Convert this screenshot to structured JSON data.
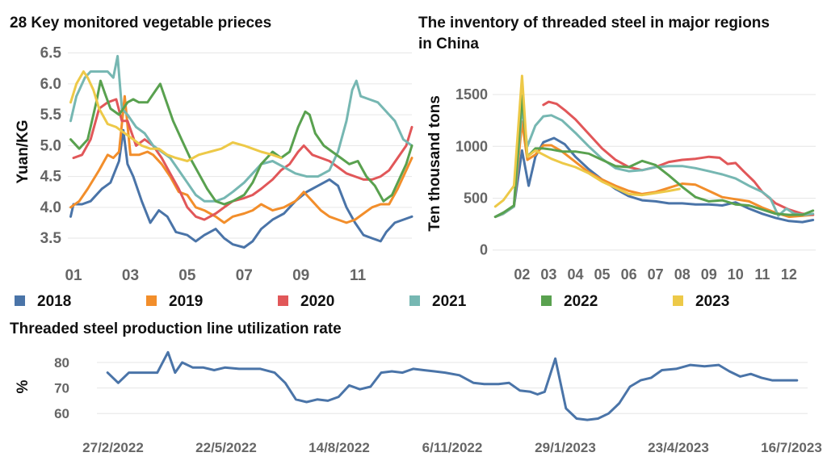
{
  "colors": {
    "2018": "#4a74a8",
    "2019": "#f28e2b",
    "2020": "#e15759",
    "2021": "#76b7b2",
    "2022": "#59a14f",
    "2023": "#edc948",
    "grid": "#e6e6e6",
    "tick": "#666666",
    "title": "#111111"
  },
  "legend": [
    "2018",
    "2019",
    "2020",
    "2021",
    "2022",
    "2023"
  ],
  "chart_data": [
    {
      "type": "line",
      "title": "28 Key monitored vegetable prieces",
      "ylabel": "Yuan/KG",
      "xlabel": "",
      "ylim": [
        3.2,
        6.6
      ],
      "xlim": [
        0.8,
        12.9
      ],
      "yticks": [
        "3.5",
        "4.0",
        "4.5",
        "5.0",
        "5.5",
        "6.0",
        "6.5"
      ],
      "ytick_values": [
        3.5,
        4.0,
        4.5,
        5.0,
        5.5,
        6.0,
        6.5
      ],
      "xticks": [
        "01",
        "03",
        "05",
        "07",
        "09",
        "11"
      ],
      "xtick_values": [
        1,
        3,
        5,
        7,
        9,
        11
      ],
      "series": [
        {
          "name": "2018",
          "x": [
            0.9,
            1.0,
            1.3,
            1.6,
            2.0,
            2.3,
            2.6,
            2.75,
            2.9,
            3.1,
            3.4,
            3.7,
            4.0,
            4.3,
            4.6,
            5.0,
            5.3,
            5.6,
            6.0,
            6.3,
            6.6,
            7.0,
            7.3,
            7.6,
            8.0,
            8.4,
            8.8,
            9.2,
            9.6,
            10.0,
            10.3,
            10.6,
            10.9,
            11.2,
            11.5,
            11.8,
            12.0,
            12.3,
            12.6,
            12.9
          ],
          "y": [
            3.85,
            4.05,
            4.05,
            4.1,
            4.3,
            4.4,
            4.75,
            5.25,
            4.7,
            4.5,
            4.1,
            3.75,
            3.95,
            3.85,
            3.6,
            3.55,
            3.45,
            3.55,
            3.65,
            3.5,
            3.4,
            3.35,
            3.45,
            3.65,
            3.8,
            3.9,
            4.1,
            4.25,
            4.35,
            4.45,
            4.35,
            4.0,
            3.75,
            3.55,
            3.5,
            3.45,
            3.6,
            3.75,
            3.8,
            3.85
          ]
        },
        {
          "name": "2019",
          "x": [
            0.9,
            1.2,
            1.5,
            1.9,
            2.2,
            2.4,
            2.6,
            2.8,
            3.0,
            3.3,
            3.6,
            3.8,
            4.1,
            4.4,
            4.7,
            5.0,
            5.3,
            5.6,
            6.0,
            6.3,
            6.6,
            7.0,
            7.3,
            7.6,
            8.0,
            8.4,
            8.8,
            9.1,
            9.4,
            9.7,
            10.0,
            10.3,
            10.6,
            10.9,
            11.2,
            11.5,
            11.8,
            12.1,
            12.4,
            12.7,
            12.9
          ],
          "y": [
            4.0,
            4.1,
            4.3,
            4.6,
            4.85,
            4.8,
            4.9,
            5.8,
            4.85,
            4.85,
            4.9,
            4.85,
            4.7,
            4.5,
            4.25,
            4.2,
            4.0,
            3.95,
            3.85,
            3.75,
            3.85,
            3.9,
            3.95,
            4.05,
            3.95,
            4.0,
            4.1,
            4.25,
            4.1,
            3.95,
            3.85,
            3.8,
            3.75,
            3.8,
            3.9,
            4.0,
            4.05,
            4.05,
            4.3,
            4.6,
            4.8
          ]
        },
        {
          "name": "2020",
          "x": [
            1.0,
            1.3,
            1.6,
            1.9,
            2.2,
            2.5,
            2.7,
            2.9,
            3.2,
            3.5,
            3.8,
            4.1,
            4.4,
            4.7,
            5.0,
            5.3,
            5.6,
            6.0,
            6.3,
            6.6,
            7.0,
            7.3,
            7.6,
            8.0,
            8.3,
            8.6,
            8.9,
            9.1,
            9.4,
            9.7,
            10.0,
            10.3,
            10.6,
            10.9,
            11.2,
            11.5,
            11.8,
            12.1,
            12.4,
            12.7,
            12.9
          ],
          "y": [
            4.8,
            4.85,
            5.1,
            5.6,
            5.7,
            5.75,
            5.4,
            5.4,
            5.0,
            5.1,
            5.0,
            4.8,
            4.55,
            4.3,
            4.0,
            3.85,
            3.8,
            3.9,
            4.0,
            4.1,
            4.15,
            4.2,
            4.3,
            4.45,
            4.6,
            4.7,
            4.9,
            5.0,
            4.85,
            4.8,
            4.75,
            4.65,
            4.55,
            4.5,
            4.45,
            4.45,
            4.5,
            4.6,
            4.8,
            5.0,
            5.3
          ]
        },
        {
          "name": "2021",
          "x": [
            0.9,
            1.1,
            1.4,
            1.6,
            1.9,
            2.2,
            2.4,
            2.55,
            2.7,
            2.9,
            3.2,
            3.5,
            3.8,
            4.1,
            4.4,
            4.7,
            5.0,
            5.3,
            5.6,
            6.0,
            6.3,
            6.6,
            7.0,
            7.3,
            7.6,
            8.0,
            8.4,
            8.8,
            9.2,
            9.6,
            10.0,
            10.3,
            10.6,
            10.8,
            10.95,
            11.1,
            11.4,
            11.7,
            12.0,
            12.3,
            12.6,
            12.9
          ],
          "y": [
            5.4,
            5.8,
            6.1,
            6.2,
            6.2,
            6.2,
            6.1,
            6.45,
            5.6,
            5.5,
            5.3,
            5.2,
            5.0,
            4.9,
            4.8,
            4.6,
            4.4,
            4.2,
            4.1,
            4.1,
            4.15,
            4.25,
            4.4,
            4.55,
            4.7,
            4.75,
            4.65,
            4.55,
            4.5,
            4.5,
            4.6,
            4.9,
            5.4,
            5.9,
            6.05,
            5.8,
            5.75,
            5.7,
            5.55,
            5.4,
            5.1,
            5.0
          ]
        },
        {
          "name": "2022",
          "x": [
            0.9,
            1.2,
            1.5,
            1.8,
            1.95,
            2.1,
            2.3,
            2.6,
            2.9,
            3.1,
            3.3,
            3.6,
            3.9,
            4.05,
            4.2,
            4.5,
            4.8,
            5.1,
            5.4,
            5.7,
            6.0,
            6.3,
            6.6,
            7.0,
            7.3,
            7.6,
            8.0,
            8.3,
            8.6,
            8.9,
            9.15,
            9.3,
            9.5,
            9.8,
            10.1,
            10.4,
            10.7,
            11.0,
            11.3,
            11.6,
            11.9,
            12.2,
            12.5,
            12.7,
            12.9
          ],
          "y": [
            5.1,
            4.95,
            5.1,
            5.7,
            6.05,
            5.85,
            5.6,
            5.5,
            5.7,
            5.75,
            5.7,
            5.7,
            5.9,
            6.0,
            5.8,
            5.4,
            5.1,
            4.8,
            4.55,
            4.3,
            4.1,
            4.05,
            4.1,
            4.2,
            4.4,
            4.7,
            4.9,
            4.8,
            4.9,
            5.3,
            5.55,
            5.5,
            5.2,
            5.0,
            4.9,
            4.8,
            4.7,
            4.75,
            4.5,
            4.35,
            4.1,
            4.2,
            4.5,
            4.7,
            5.0
          ]
        },
        {
          "name": "2023",
          "x": [
            0.9,
            1.1,
            1.35,
            1.5,
            1.7,
            1.9,
            2.2,
            2.5,
            2.8,
            3.1,
            3.4,
            3.7,
            4.0,
            4.3,
            4.6,
            5.0,
            5.4,
            5.8,
            6.2,
            6.6,
            7.0,
            7.3,
            7.6,
            8.0,
            8.3
          ],
          "y": [
            5.7,
            6.0,
            6.2,
            6.1,
            5.9,
            5.6,
            5.35,
            5.3,
            5.2,
            5.1,
            5.0,
            4.95,
            4.95,
            4.85,
            4.8,
            4.75,
            4.85,
            4.9,
            4.95,
            5.05,
            5.0,
            4.95,
            4.9,
            4.85,
            4.8
          ]
        }
      ]
    },
    {
      "type": "line",
      "title": "The inventory of threaded steel in major regions in China",
      "ylabel": "Ten thousand tons",
      "xlabel": "",
      "ylim": [
        -80,
        1750
      ],
      "xlim": [
        0.9,
        13.0
      ],
      "yticks": [
        "0",
        "500",
        "1000",
        "1500"
      ],
      "ytick_values": [
        0,
        500,
        1000,
        1500
      ],
      "xticks": [
        "02",
        "03",
        "04",
        "05",
        "06",
        "07",
        "08",
        "09",
        "10",
        "11",
        "12"
      ],
      "xtick_values": [
        2,
        3,
        4,
        5,
        6,
        7,
        8,
        9,
        10,
        11,
        12
      ],
      "series": [
        {
          "name": "2018",
          "x": [
            1.0,
            1.3,
            1.7,
            2.0,
            2.25,
            2.5,
            2.8,
            3.2,
            3.6,
            4.0,
            4.5,
            5.0,
            5.5,
            6.0,
            6.5,
            7.0,
            7.5,
            8.0,
            8.5,
            9.0,
            9.5,
            10.0,
            10.5,
            11.0,
            11.5,
            12.0,
            12.5,
            12.9
          ],
          "y": [
            320,
            360,
            420,
            960,
            620,
            900,
            1040,
            1080,
            1020,
            900,
            780,
            680,
            590,
            520,
            480,
            470,
            450,
            450,
            440,
            440,
            430,
            460,
            400,
            350,
            310,
            280,
            270,
            290
          ]
        },
        {
          "name": "2019",
          "x": [
            1.0,
            1.3,
            1.7,
            2.0,
            2.2,
            2.5,
            2.8,
            3.1,
            3.5,
            4.0,
            4.5,
            5.0,
            5.5,
            6.0,
            6.5,
            7.0,
            7.5,
            8.0,
            8.5,
            9.0,
            9.5,
            10.0,
            10.5,
            11.0,
            11.5,
            12.0,
            12.5,
            12.9
          ],
          "y": [
            320,
            350,
            420,
            1240,
            870,
            920,
            1010,
            1010,
            950,
            850,
            750,
            680,
            620,
            570,
            540,
            560,
            600,
            640,
            630,
            570,
            510,
            490,
            470,
            410,
            360,
            320,
            330,
            340
          ]
        },
        {
          "name": "2020",
          "x": [
            2.8,
            3.0,
            3.3,
            3.6,
            4.0,
            4.5,
            5.0,
            5.5,
            6.0,
            6.5,
            7.0,
            7.5,
            8.0,
            8.5,
            9.0,
            9.4,
            9.7,
            10.0,
            10.3,
            10.7,
            11.0,
            11.5,
            12.0,
            12.5,
            12.9
          ],
          "y": [
            1400,
            1430,
            1410,
            1350,
            1260,
            1120,
            980,
            870,
            800,
            770,
            800,
            850,
            870,
            880,
            900,
            890,
            830,
            840,
            760,
            660,
            560,
            450,
            390,
            350,
            340
          ]
        },
        {
          "name": "2021",
          "x": [
            1.0,
            1.3,
            1.7,
            2.0,
            2.2,
            2.5,
            2.8,
            3.1,
            3.5,
            4.0,
            4.5,
            5.0,
            5.5,
            6.0,
            6.5,
            7.0,
            7.5,
            8.0,
            8.5,
            9.0,
            9.5,
            10.0,
            10.5,
            11.0,
            11.3,
            11.6,
            11.9,
            12.2,
            12.6,
            12.9
          ],
          "y": [
            320,
            350,
            420,
            1380,
            1000,
            1200,
            1290,
            1300,
            1250,
            1130,
            1000,
            880,
            790,
            760,
            770,
            800,
            810,
            810,
            790,
            760,
            730,
            690,
            620,
            560,
            500,
            330,
            400,
            350,
            340,
            350
          ]
        },
        {
          "name": "2022",
          "x": [
            1.0,
            1.3,
            1.7,
            2.0,
            2.2,
            2.5,
            2.8,
            3.1,
            3.5,
            4.0,
            4.5,
            5.0,
            5.5,
            6.0,
            6.5,
            7.0,
            7.5,
            8.0,
            8.5,
            9.0,
            9.5,
            10.0,
            10.5,
            11.0,
            11.5,
            12.0,
            12.5,
            12.9
          ],
          "y": [
            320,
            360,
            430,
            1490,
            900,
            980,
            980,
            970,
            950,
            950,
            930,
            870,
            810,
            800,
            860,
            820,
            720,
            610,
            510,
            470,
            480,
            440,
            430,
            390,
            350,
            340,
            340,
            380
          ]
        },
        {
          "name": "2023",
          "x": [
            1.0,
            1.3,
            1.7,
            2.0,
            2.2,
            2.5,
            2.8,
            3.1,
            3.5,
            4.0,
            4.5,
            5.0,
            5.5,
            6.0,
            6.5,
            7.0,
            7.5,
            7.9
          ],
          "y": [
            420,
            480,
            620,
            1680,
            900,
            960,
            920,
            880,
            840,
            800,
            740,
            660,
            600,
            540,
            530,
            550,
            570,
            590
          ]
        }
      ]
    },
    {
      "type": "line",
      "title": "Threaded steel production line utilization rate",
      "ylabel": "%",
      "xlabel": "",
      "ylim": [
        55,
        86
      ],
      "xlim": [
        0,
        1
      ],
      "yticks": [
        "60",
        "70",
        "80"
      ],
      "ytick_values": [
        60,
        70,
        80
      ],
      "xticks": [
        "27/2/2022",
        "22/5/2022",
        "14/8/2022",
        "6/11/2022",
        "29/1/2023",
        "23/4/2023",
        "16/7/2023"
      ],
      "series": [
        {
          "name": "",
          "x": [
            0.015,
            0.03,
            0.045,
            0.065,
            0.085,
            0.1,
            0.11,
            0.12,
            0.135,
            0.15,
            0.165,
            0.18,
            0.2,
            0.215,
            0.23,
            0.25,
            0.265,
            0.28,
            0.295,
            0.31,
            0.325,
            0.34,
            0.355,
            0.37,
            0.385,
            0.4,
            0.415,
            0.43,
            0.445,
            0.46,
            0.475,
            0.49,
            0.51,
            0.53,
            0.545,
            0.565,
            0.58,
            0.595,
            0.61,
            0.62,
            0.63,
            0.645,
            0.66,
            0.675,
            0.69,
            0.705,
            0.72,
            0.735,
            0.75,
            0.765,
            0.78,
            0.795,
            0.815,
            0.835,
            0.855,
            0.875,
            0.89,
            0.905,
            0.92,
            0.935,
            0.95,
            0.965,
            0.985
          ],
          "y": [
            76,
            72,
            76,
            76,
            76,
            84,
            76,
            80,
            78,
            78,
            77,
            78,
            77.5,
            77.5,
            77.5,
            76,
            72,
            65.5,
            64.5,
            65.5,
            65,
            66.5,
            71,
            69.5,
            70.5,
            76,
            76.5,
            76,
            77.5,
            77,
            76.5,
            76,
            75,
            72,
            71.5,
            71.5,
            72,
            69,
            68.5,
            67.5,
            68.5,
            81.5,
            62,
            58,
            57.5,
            58,
            60,
            64,
            70.5,
            73,
            74,
            77,
            77.5,
            79,
            78.5,
            79,
            76.5,
            74.5,
            75.5,
            74,
            73,
            73,
            73
          ]
        }
      ]
    }
  ]
}
